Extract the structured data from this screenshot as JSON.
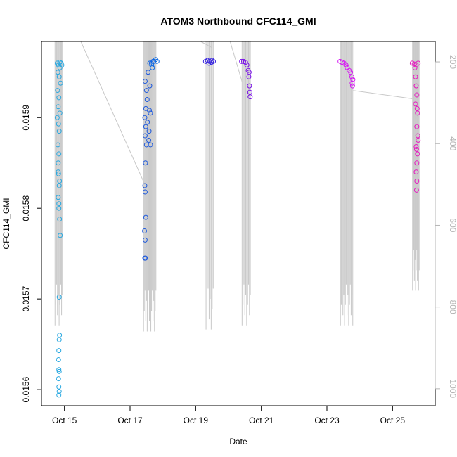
{
  "chart_data": {
    "type": "scatter",
    "title": "ATOM3 Northbound CFC114_GMI",
    "xlabel": "Date",
    "ylabel": "CFC114_GMI",
    "x_unit": "days (October)",
    "ylim": [
      0.01559,
      0.01597
    ],
    "y2lim_pressure": [
      1030,
      150
    ],
    "x_ticks": [
      {
        "value": 15,
        "label": "Oct 15"
      },
      {
        "value": 17,
        "label": "Oct 17"
      },
      {
        "value": 19,
        "label": "Oct 19"
      },
      {
        "value": 21,
        "label": "Oct 21"
      },
      {
        "value": 23,
        "label": "Oct 23"
      },
      {
        "value": 25,
        "label": "Oct 25"
      }
    ],
    "y_ticks": [
      {
        "value": 0.0156,
        "label": "0.0156"
      },
      {
        "value": 0.0157,
        "label": "0.0157"
      },
      {
        "value": 0.0158,
        "label": "0.0158"
      },
      {
        "value": 0.0159,
        "label": "0.0159"
      }
    ],
    "y2_ticks": [
      {
        "value": 200,
        "label": "200"
      },
      {
        "value": 400,
        "label": "400"
      },
      {
        "value": 600,
        "label": "600"
      },
      {
        "value": 800,
        "label": "800"
      },
      {
        "value": 1000,
        "label": "1000"
      }
    ],
    "series": [
      {
        "color": "#29a8e0",
        "points": [
          [
            14.78,
            0.01596
          ],
          [
            14.82,
            0.015958
          ],
          [
            14.86,
            0.015955
          ],
          [
            14.8,
            0.01595
          ],
          [
            14.84,
            0.015945
          ],
          [
            14.88,
            0.015938
          ],
          [
            14.79,
            0.01593
          ],
          [
            14.83,
            0.015922
          ],
          [
            14.81,
            0.015912
          ],
          [
            14.86,
            0.015905
          ],
          [
            14.78,
            0.0159
          ],
          [
            14.82,
            0.015893
          ],
          [
            14.84,
            0.015885
          ],
          [
            14.8,
            0.01587
          ],
          [
            14.83,
            0.01586
          ],
          [
            14.81,
            0.01585
          ],
          [
            14.82,
            0.015838
          ],
          [
            14.84,
            0.015825
          ],
          [
            14.81,
            0.015812
          ],
          [
            14.83,
            0.0158
          ],
          [
            14.85,
            0.015788
          ],
          [
            14.87,
            0.01577
          ],
          [
            14.84,
            0.015702
          ],
          [
            14.84,
            0.015655
          ],
          [
            14.83,
            0.015643
          ],
          [
            14.82,
            0.015633
          ],
          [
            14.83,
            0.015622
          ],
          [
            14.82,
            0.015612
          ],
          [
            14.83,
            0.015603
          ],
          [
            14.84,
            0.015598
          ],
          [
            14.83,
            0.015594
          ],
          [
            14.84,
            0.01562
          ],
          [
            14.85,
            0.01566
          ],
          [
            14.86,
            0.015961
          ],
          [
            14.9,
            0.01596
          ],
          [
            14.92,
            0.015958
          ],
          [
            14.81,
            0.01584
          ],
          [
            14.85,
            0.01583
          ],
          [
            14.83,
            0.015805
          ]
        ]
      },
      {
        "color": "#1f5adc",
        "points": [
          [
            17.45,
            0.0159
          ],
          [
            17.48,
            0.01589
          ],
          [
            17.46,
            0.01588
          ],
          [
            17.5,
            0.01587
          ],
          [
            17.47,
            0.01585
          ],
          [
            17.45,
            0.015825
          ],
          [
            17.46,
            0.015818
          ],
          [
            17.48,
            0.01579
          ],
          [
            17.44,
            0.015775
          ],
          [
            17.46,
            0.015765
          ],
          [
            17.45,
            0.015745
          ],
          [
            17.47,
            0.015745
          ],
          [
            17.48,
            0.01591
          ],
          [
            17.52,
            0.01592
          ],
          [
            17.5,
            0.01593
          ],
          [
            17.46,
            0.01594
          ],
          [
            17.55,
            0.01595
          ],
          [
            17.6,
            0.015935
          ],
          [
            17.62,
            0.015905
          ],
          [
            17.58,
            0.015885
          ],
          [
            17.62,
            0.01587
          ],
          [
            17.65,
            0.01596
          ],
          [
            17.7,
            0.015962
          ],
          [
            17.53,
            0.015895
          ],
          [
            17.57,
            0.015875
          ],
          [
            17.59,
            0.015908
          ]
        ]
      },
      {
        "color": "#0d6be6",
        "points": [
          [
            17.6,
            0.01596
          ],
          [
            17.66,
            0.015958
          ],
          [
            17.72,
            0.015962
          ],
          [
            17.78,
            0.015964
          ],
          [
            17.82,
            0.015962
          ],
          [
            17.68,
            0.015955
          ]
        ]
      },
      {
        "color": "#3b28e0",
        "points": [
          [
            19.3,
            0.015962
          ],
          [
            19.36,
            0.015963
          ],
          [
            19.42,
            0.015962
          ],
          [
            19.48,
            0.015961
          ],
          [
            19.54,
            0.015962
          ],
          [
            19.4,
            0.01596
          ],
          [
            19.5,
            0.015963
          ]
        ]
      },
      {
        "color": "#7a10e8",
        "points": [
          [
            20.4,
            0.015962
          ],
          [
            20.46,
            0.015962
          ],
          [
            20.52,
            0.015961
          ],
          [
            20.56,
            0.015958
          ],
          [
            20.6,
            0.015952
          ],
          [
            20.62,
            0.015945
          ],
          [
            20.64,
            0.015935
          ],
          [
            20.65,
            0.015928
          ],
          [
            20.66,
            0.015923
          ],
          [
            20.63,
            0.01595
          ]
        ]
      },
      {
        "color": "#d51bf2",
        "points": [
          [
            23.4,
            0.015962
          ],
          [
            23.46,
            0.015961
          ],
          [
            23.52,
            0.01596
          ],
          [
            23.58,
            0.015958
          ],
          [
            23.62,
            0.015955
          ],
          [
            23.68,
            0.015952
          ],
          [
            23.72,
            0.01595
          ],
          [
            23.76,
            0.015945
          ],
          [
            23.79,
            0.015942
          ],
          [
            23.77,
            0.015938
          ],
          [
            23.78,
            0.015935
          ]
        ]
      },
      {
        "color": "#e61bc0",
        "points": [
          [
            25.6,
            0.01596
          ],
          [
            25.66,
            0.015959
          ],
          [
            25.72,
            0.015958
          ],
          [
            25.78,
            0.01596
          ],
          [
            25.68,
            0.015955
          ],
          [
            25.7,
            0.015945
          ],
          [
            25.72,
            0.015935
          ],
          [
            25.74,
            0.015925
          ],
          [
            25.7,
            0.015915
          ],
          [
            25.76,
            0.015905
          ],
          [
            25.74,
            0.01589
          ],
          [
            25.78,
            0.015875
          ],
          [
            25.72,
            0.015868
          ],
          [
            25.76,
            0.01586
          ],
          [
            25.74,
            0.01585
          ],
          [
            25.72,
            0.01584
          ],
          [
            25.74,
            0.01583
          ],
          [
            25.73,
            0.01582
          ],
          [
            25.75,
            0.01591
          ],
          [
            25.77,
            0.01588
          ],
          [
            25.73,
            0.015865
          ]
        ]
      }
    ],
    "pressure_profiles": [
      {
        "x_range": [
          14.7,
          14.95
        ],
        "max_pressure": 845,
        "lines": 10
      },
      {
        "x_range": [
          17.4,
          17.8
        ],
        "max_pressure": 860,
        "lines": 18
      },
      {
        "x_range": [
          19.3,
          19.55
        ],
        "max_pressure": 855,
        "lines": 8
      },
      {
        "x_range": [
          20.4,
          20.68
        ],
        "max_pressure": 845,
        "lines": 10
      },
      {
        "x_range": [
          23.4,
          23.8
        ],
        "max_pressure": 845,
        "lines": 16
      },
      {
        "x_range": [
          25.6,
          25.82
        ],
        "max_pressure": 760,
        "lines": 12
      }
    ],
    "pressure_connectors": [
      [
        [
          14.9,
          150
        ],
        [
          15.5,
          150
        ],
        [
          17.45,
          500
        ]
      ],
      [
        [
          19.15,
          150
        ],
        [
          19.5,
          165
        ]
      ],
      [
        [
          20.05,
          150
        ],
        [
          20.42,
          250
        ]
      ],
      [
        [
          23.8,
          270
        ],
        [
          25.6,
          290
        ]
      ]
    ],
    "grid": false,
    "legend": "none"
  }
}
